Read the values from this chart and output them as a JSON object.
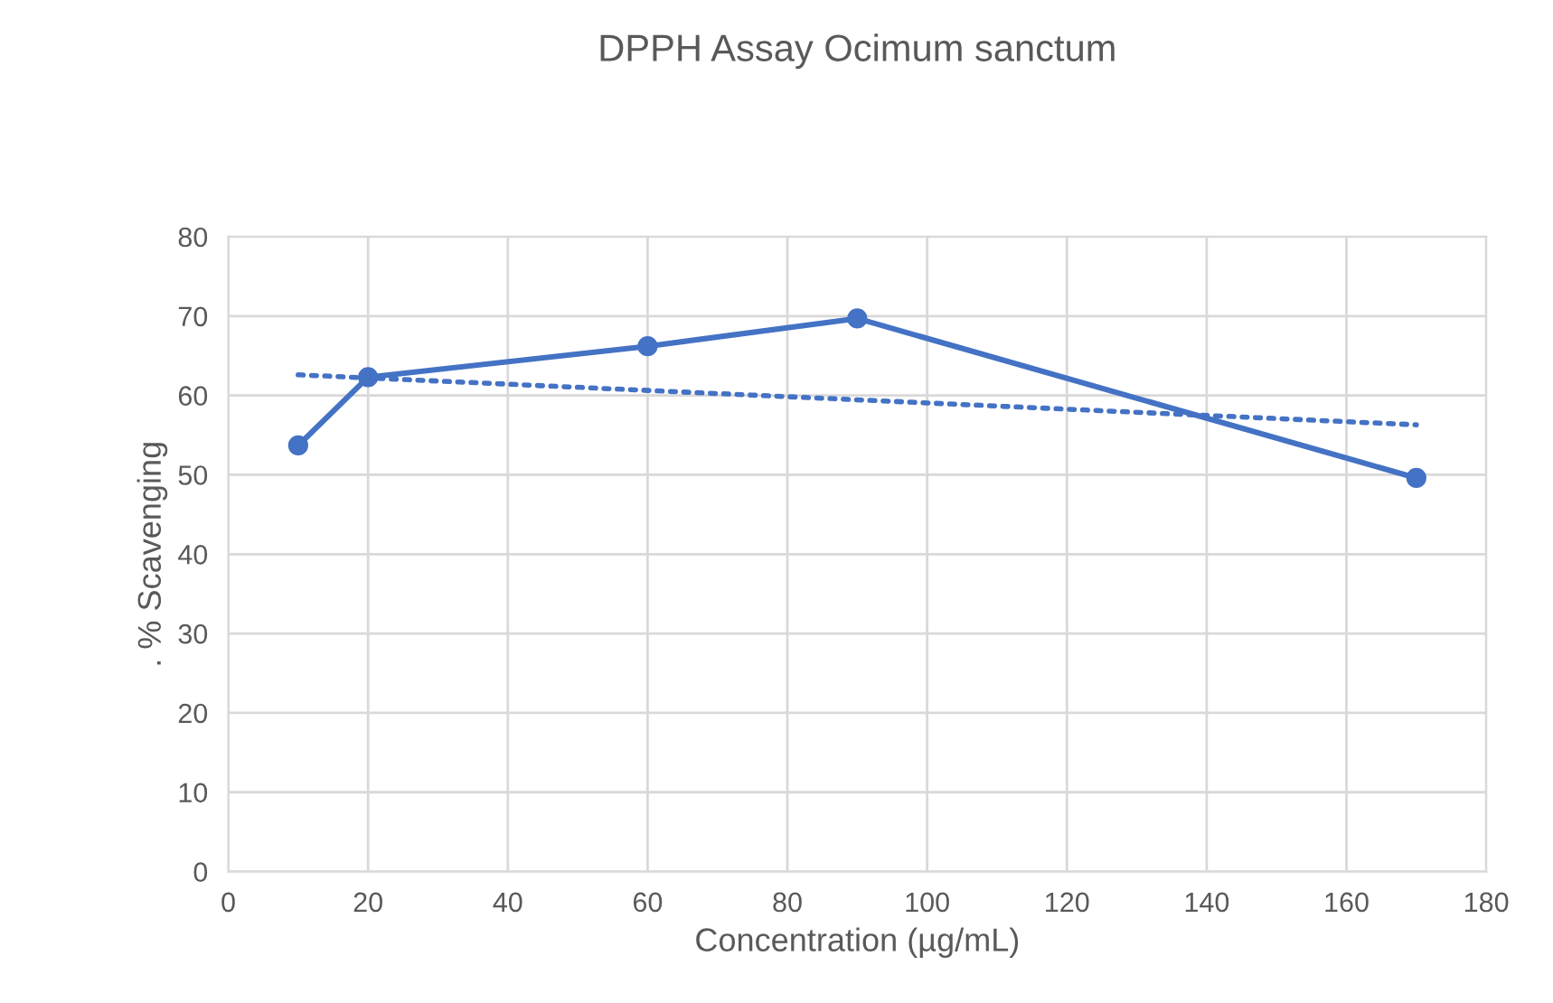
{
  "chart_data": {
    "type": "line",
    "title": "DPPH Assay Ocimum sanctum",
    "xlabel": "Concentration (µg/mL)",
    "ylabel": ". % Scavenging",
    "series": [
      {
        "x": [
          10,
          20,
          60,
          90,
          170
        ],
        "values": [
          53.7,
          62.3,
          66.2,
          69.7,
          49.6
        ],
        "color": "#4472c4",
        "marker": "circle",
        "line_style": "solid"
      },
      {
        "type": "line",
        "x": [
          10,
          170
        ],
        "values": [
          62.6,
          56.3
        ],
        "color": "#4472c4",
        "marker": "none",
        "line_style": "dotted"
      }
    ],
    "xlim": [
      0,
      180
    ],
    "xticks": [
      0,
      20,
      40,
      60,
      80,
      100,
      120,
      140,
      160,
      180
    ],
    "ylim": [
      0,
      80
    ],
    "yticks": [
      0,
      10,
      20,
      30,
      40,
      50,
      60,
      70,
      80
    ],
    "grid": true,
    "legend": false
  }
}
